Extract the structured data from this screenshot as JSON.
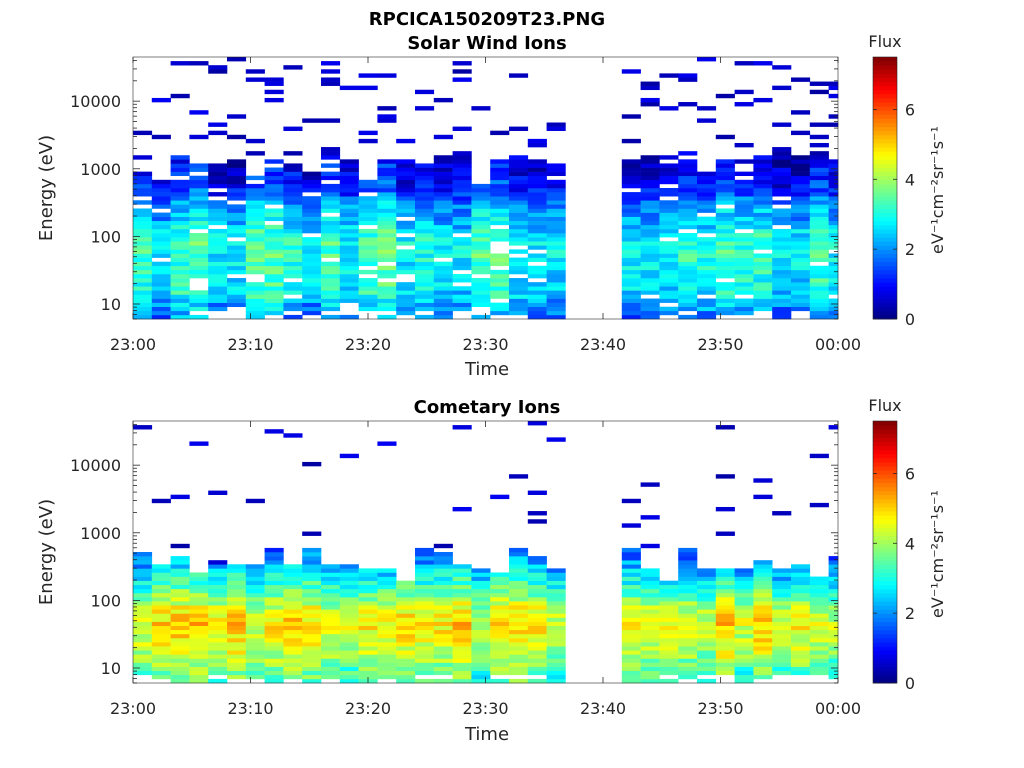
{
  "figure_title": "RPCICA150209T23.PNG",
  "chart_data": [
    {
      "type": "heatmap",
      "title": "Solar Wind Ions",
      "xlabel": "Time",
      "ylabel": "Energy (eV)",
      "x_tick_labels": [
        "23:00",
        "23:10",
        "23:20",
        "23:30",
        "23:40",
        "23:50",
        "00:00"
      ],
      "xlim_minutes": [
        0,
        60
      ],
      "y_scale": "log",
      "ylim": [
        6,
        45000
      ],
      "y_tick_values": [
        10,
        100,
        1000,
        10000
      ],
      "y_tick_labels": [
        "10",
        "100",
        "1000",
        "10000"
      ],
      "colorbar": {
        "label": "Flux",
        "unit": "eV⁻¹cm⁻²sr⁻¹s⁻¹",
        "range": [
          0,
          7.5
        ],
        "ticks": [
          "0",
          "2",
          "4",
          "6"
        ]
      },
      "colormap": "jet",
      "data_gap_minutes": [
        37.8,
        40.8
      ],
      "scan_period_minutes": 1.6,
      "profile_points": [
        {
          "logE": 0.78,
          "flux": 1.9
        },
        {
          "logE": 1.0,
          "flux": 2.3
        },
        {
          "logE": 1.15,
          "flux": 2.8
        },
        {
          "logE": 1.35,
          "flux": 2.9
        },
        {
          "logE": 1.6,
          "flux": 3.0
        },
        {
          "logE": 1.85,
          "flux": 3.1
        },
        {
          "logE": 2.0,
          "flux": 3.0
        },
        {
          "logE": 2.25,
          "flux": 2.4
        },
        {
          "logE": 2.45,
          "flux": 2.2
        },
        {
          "logE": 2.6,
          "flux": 1.6
        },
        {
          "logE": 2.8,
          "flux": 1.1
        },
        {
          "logE": 3.0,
          "flux": 0.9
        },
        {
          "logE": 3.5,
          "flux": 0.6
        },
        {
          "logE": 4.65,
          "flux": 0.4
        }
      ],
      "dense_top_logE": 3.05,
      "sparse_line_rate": 0.12,
      "mid_hole_rate": 0.05
    },
    {
      "type": "heatmap",
      "title": "Cometary Ions",
      "xlabel": "Time",
      "ylabel": "Energy (eV)",
      "x_tick_labels": [
        "23:00",
        "23:10",
        "23:20",
        "23:30",
        "23:40",
        "23:50",
        "00:00"
      ],
      "xlim_minutes": [
        0,
        60
      ],
      "y_scale": "log",
      "ylim": [
        6,
        45000
      ],
      "y_tick_values": [
        10,
        100,
        1000,
        10000
      ],
      "y_tick_labels": [
        "10",
        "100",
        "1000",
        "10000"
      ],
      "colorbar": {
        "label": "Flux",
        "unit": "eV⁻¹cm⁻²sr⁻¹s⁻¹",
        "range": [
          0,
          7.5
        ],
        "ticks": [
          "0",
          "2",
          "4",
          "6"
        ]
      },
      "colormap": "jet",
      "data_gap_minutes": [
        37.8,
        40.8
      ],
      "scan_period_minutes": 1.6,
      "profile_points": [
        {
          "logE": 0.78,
          "flux": 3.3
        },
        {
          "logE": 1.0,
          "flux": 3.6
        },
        {
          "logE": 1.2,
          "flux": 4.1
        },
        {
          "logE": 1.45,
          "flux": 4.5
        },
        {
          "logE": 1.65,
          "flux": 4.7
        },
        {
          "logE": 1.85,
          "flux": 4.4
        },
        {
          "logE": 2.05,
          "flux": 3.7
        },
        {
          "logE": 2.25,
          "flux": 3.0
        },
        {
          "logE": 2.45,
          "flux": 2.5
        },
        {
          "logE": 2.65,
          "flux": 1.8
        },
        {
          "logE": 2.85,
          "flux": 1.2
        },
        {
          "logE": 3.1,
          "flux": 0.8
        }
      ],
      "dense_top_logE": 2.55,
      "sparse_line_rate": 0.03,
      "mid_hole_rate": 0.0
    }
  ]
}
